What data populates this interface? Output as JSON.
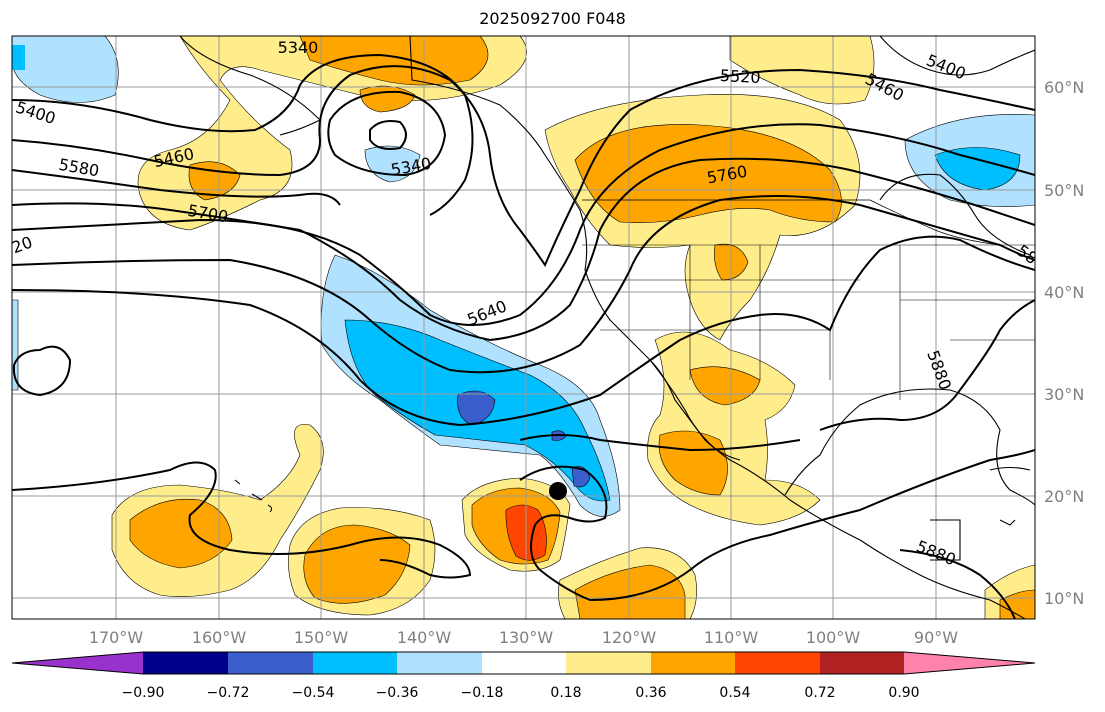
{
  "title": "2025092700 F048",
  "map": {
    "lon_labels": [
      "170°W",
      "160°W",
      "150°W",
      "140°W",
      "130°W",
      "120°W",
      "110°W",
      "100°W",
      "90°W"
    ],
    "lat_labels": [
      "60°N",
      "50°N",
      "40°N",
      "30°N",
      "20°N",
      "10°N"
    ],
    "contour_labels": [
      "5340",
      "5400",
      "5460",
      "5520",
      "5580",
      "5700",
      "5760",
      "5640",
      "5340",
      "5400",
      "5460",
      "20",
      "5880",
      "5880",
      "58"
    ],
    "marker": "storm-center"
  },
  "colorbar": {
    "ticks": [
      "−0.90",
      "−0.72",
      "−0.54",
      "−0.36",
      "−0.18",
      "0.18",
      "0.36",
      "0.54",
      "0.72",
      "0.90"
    ],
    "colors": [
      "#9932cc",
      "#00008b",
      "#3a5fcd",
      "#00bfff",
      "#b0e2ff",
      "#ffffff",
      "#ffec8b",
      "#ffa500",
      "#ff4500",
      "#b22222",
      "#ff82ab"
    ]
  }
}
